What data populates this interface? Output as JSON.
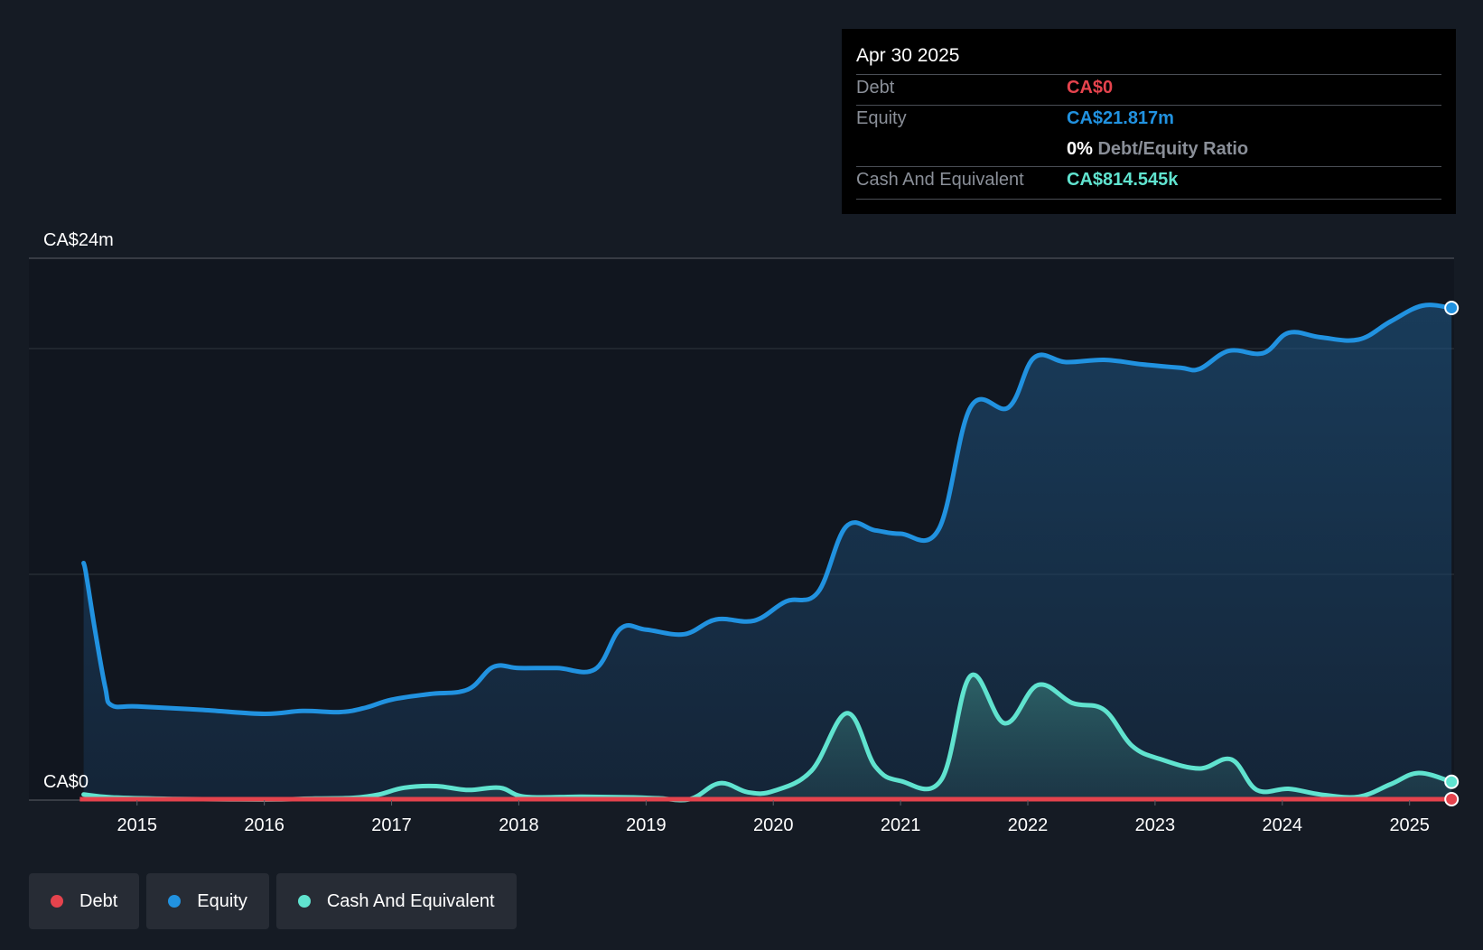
{
  "chart_data": {
    "type": "area",
    "title": "",
    "xlabel": "",
    "ylabel": "",
    "ylim": [
      0,
      24
    ],
    "y_unit": "CA$m",
    "y_ticks": [
      {
        "value": 24,
        "label": "CA$24m"
      },
      {
        "value": 0,
        "label": "CA$0"
      }
    ],
    "gridlines": [
      24,
      20,
      10
    ],
    "x_ticks": [
      "2015",
      "2016",
      "2017",
      "2018",
      "2019",
      "2020",
      "2021",
      "2022",
      "2023",
      "2024",
      "2025"
    ],
    "xlim": [
      2014.15,
      2025.35
    ],
    "series": [
      {
        "name": "Debt",
        "color": "#e5434d",
        "points": [
          [
            2014.55,
            0
          ],
          [
            2025.33,
            0
          ]
        ]
      },
      {
        "name": "Equity",
        "color": "#2192e0",
        "points": [
          [
            2014.58,
            10.5
          ],
          [
            2014.6,
            10.0
          ],
          [
            2014.67,
            7.5
          ],
          [
            2014.75,
            5.0
          ],
          [
            2014.8,
            4.2
          ],
          [
            2015.0,
            4.15
          ],
          [
            2015.5,
            4.0
          ],
          [
            2016.0,
            3.82
          ],
          [
            2016.3,
            3.95
          ],
          [
            2016.6,
            3.9
          ],
          [
            2016.8,
            4.1
          ],
          [
            2017.0,
            4.45
          ],
          [
            2017.3,
            4.7
          ],
          [
            2017.6,
            4.9
          ],
          [
            2017.8,
            5.9
          ],
          [
            2018.0,
            5.85
          ],
          [
            2018.3,
            5.85
          ],
          [
            2018.6,
            5.8
          ],
          [
            2018.8,
            7.6
          ],
          [
            2019.0,
            7.55
          ],
          [
            2019.3,
            7.35
          ],
          [
            2019.55,
            8.0
          ],
          [
            2019.85,
            7.95
          ],
          [
            2020.1,
            8.8
          ],
          [
            2020.35,
            9.2
          ],
          [
            2020.57,
            12.1
          ],
          [
            2020.8,
            11.95
          ],
          [
            2021.0,
            11.8
          ],
          [
            2021.3,
            12.0
          ],
          [
            2021.55,
            17.4
          ],
          [
            2021.85,
            17.4
          ],
          [
            2022.05,
            19.6
          ],
          [
            2022.3,
            19.4
          ],
          [
            2022.6,
            19.5
          ],
          [
            2022.9,
            19.3
          ],
          [
            2023.2,
            19.15
          ],
          [
            2023.35,
            19.1
          ],
          [
            2023.58,
            19.9
          ],
          [
            2023.85,
            19.8
          ],
          [
            2024.05,
            20.7
          ],
          [
            2024.3,
            20.5
          ],
          [
            2024.6,
            20.4
          ],
          [
            2024.85,
            21.2
          ],
          [
            2025.1,
            21.9
          ],
          [
            2025.33,
            21.8
          ]
        ]
      },
      {
        "name": "Cash And Equivalent",
        "color": "#60e3cf",
        "points": [
          [
            2014.58,
            0.25
          ],
          [
            2014.8,
            0.12
          ],
          [
            2015.3,
            0.05
          ],
          [
            2015.8,
            0.03
          ],
          [
            2016.1,
            0.03
          ],
          [
            2016.4,
            0.07
          ],
          [
            2016.7,
            0.1
          ],
          [
            2016.9,
            0.25
          ],
          [
            2017.1,
            0.55
          ],
          [
            2017.35,
            0.62
          ],
          [
            2017.6,
            0.45
          ],
          [
            2017.85,
            0.55
          ],
          [
            2018.05,
            0.15
          ],
          [
            2018.5,
            0.15
          ],
          [
            2018.9,
            0.12
          ],
          [
            2019.1,
            0.08
          ],
          [
            2019.35,
            0.05
          ],
          [
            2019.58,
            0.75
          ],
          [
            2019.8,
            0.35
          ],
          [
            2020.0,
            0.4
          ],
          [
            2020.3,
            1.3
          ],
          [
            2020.58,
            3.85
          ],
          [
            2020.8,
            1.5
          ],
          [
            2021.0,
            0.85
          ],
          [
            2021.32,
            0.9
          ],
          [
            2021.55,
            5.5
          ],
          [
            2021.82,
            3.4
          ],
          [
            2022.08,
            5.1
          ],
          [
            2022.35,
            4.3
          ],
          [
            2022.6,
            4.0
          ],
          [
            2022.82,
            2.4
          ],
          [
            2023.05,
            1.8
          ],
          [
            2023.35,
            1.4
          ],
          [
            2023.6,
            1.8
          ],
          [
            2023.8,
            0.45
          ],
          [
            2024.05,
            0.5
          ],
          [
            2024.3,
            0.25
          ],
          [
            2024.6,
            0.15
          ],
          [
            2024.85,
            0.7
          ],
          [
            2025.07,
            1.2
          ],
          [
            2025.33,
            0.81
          ]
        ]
      }
    ],
    "tooltip": {
      "date": "Apr 30 2025",
      "debt_label": "Debt",
      "debt_value": "CA$0",
      "equity_label": "Equity",
      "equity_value": "CA$21.817m",
      "ratio_value": "0%",
      "ratio_label": "Debt/Equity Ratio",
      "cash_label": "Cash And Equivalent",
      "cash_value": "CA$814.545k"
    }
  },
  "legend": {
    "items": [
      {
        "label": "Debt",
        "color": "#e5434d"
      },
      {
        "label": "Equity",
        "color": "#2192e0"
      },
      {
        "label": "Cash And Equivalent",
        "color": "#60e3cf"
      }
    ]
  }
}
